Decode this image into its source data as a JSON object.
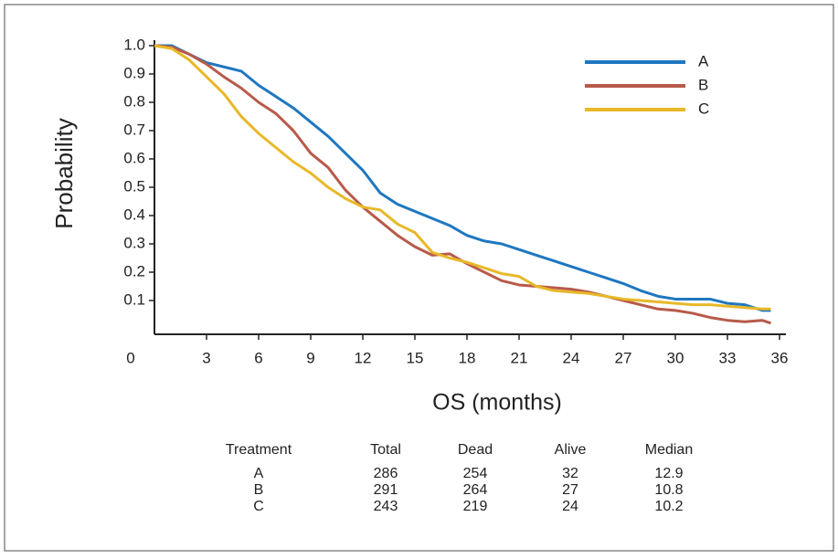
{
  "chart_data": {
    "type": "line",
    "xlabel": "OS (months)",
    "ylabel": "Probability",
    "origin_label": "0",
    "x": [
      0,
      1,
      2,
      3,
      4,
      5,
      6,
      7,
      8,
      9,
      10,
      11,
      12,
      13,
      14,
      15,
      16,
      17,
      18,
      19,
      20,
      21,
      22,
      23,
      24,
      25,
      26,
      27,
      28,
      29,
      30,
      31,
      32,
      33,
      34,
      35,
      35.5
    ],
    "series": [
      {
        "name": "A",
        "color": "#1f77c0",
        "values": [
          1.0,
          1.0,
          0.97,
          0.94,
          0.925,
          0.91,
          0.86,
          0.82,
          0.78,
          0.73,
          0.68,
          0.62,
          0.56,
          0.48,
          0.44,
          0.415,
          0.39,
          0.365,
          0.33,
          0.31,
          0.3,
          0.28,
          0.26,
          0.24,
          0.22,
          0.2,
          0.18,
          0.16,
          0.135,
          0.115,
          0.105,
          0.105,
          0.105,
          0.09,
          0.085,
          0.065,
          0.065
        ]
      },
      {
        "name": "B",
        "color": "#b85a4a",
        "values": [
          1.0,
          0.995,
          0.97,
          0.935,
          0.89,
          0.85,
          0.8,
          0.76,
          0.7,
          0.62,
          0.57,
          0.49,
          0.43,
          0.38,
          0.33,
          0.29,
          0.26,
          0.265,
          0.23,
          0.2,
          0.17,
          0.155,
          0.15,
          0.145,
          0.14,
          0.13,
          0.115,
          0.1,
          0.085,
          0.07,
          0.065,
          0.055,
          0.04,
          0.03,
          0.025,
          0.03,
          0.02
        ]
      },
      {
        "name": "C",
        "color": "#e8b828",
        "values": [
          1.0,
          0.99,
          0.95,
          0.89,
          0.83,
          0.75,
          0.69,
          0.64,
          0.59,
          0.55,
          0.5,
          0.46,
          0.43,
          0.42,
          0.37,
          0.34,
          0.27,
          0.25,
          0.235,
          0.215,
          0.195,
          0.185,
          0.15,
          0.135,
          0.13,
          0.125,
          0.115,
          0.105,
          0.1,
          0.095,
          0.09,
          0.085,
          0.085,
          0.08,
          0.075,
          0.07,
          0.07
        ]
      }
    ],
    "xlim": [
      0,
      36
    ],
    "xticks": [
      3,
      6,
      9,
      12,
      15,
      18,
      21,
      24,
      27,
      30,
      33,
      36
    ],
    "ylim": [
      0,
      1
    ],
    "yticks": [
      0.1,
      0.2,
      0.3,
      0.4,
      0.5,
      0.6,
      0.7,
      0.8,
      0.9,
      {
        "value": 1,
        "label": "1.0"
      }
    ],
    "legend": "upper-right"
  },
  "table": {
    "header": [
      "Treatment",
      "Total",
      "Dead",
      "Alive",
      "Median"
    ],
    "rows": [
      [
        "A",
        "286",
        "254",
        "32",
        "12.9"
      ],
      [
        "B",
        "291",
        "264",
        "27",
        "10.8"
      ],
      [
        "C",
        "243",
        "219",
        "24",
        "10.2"
      ]
    ]
  }
}
